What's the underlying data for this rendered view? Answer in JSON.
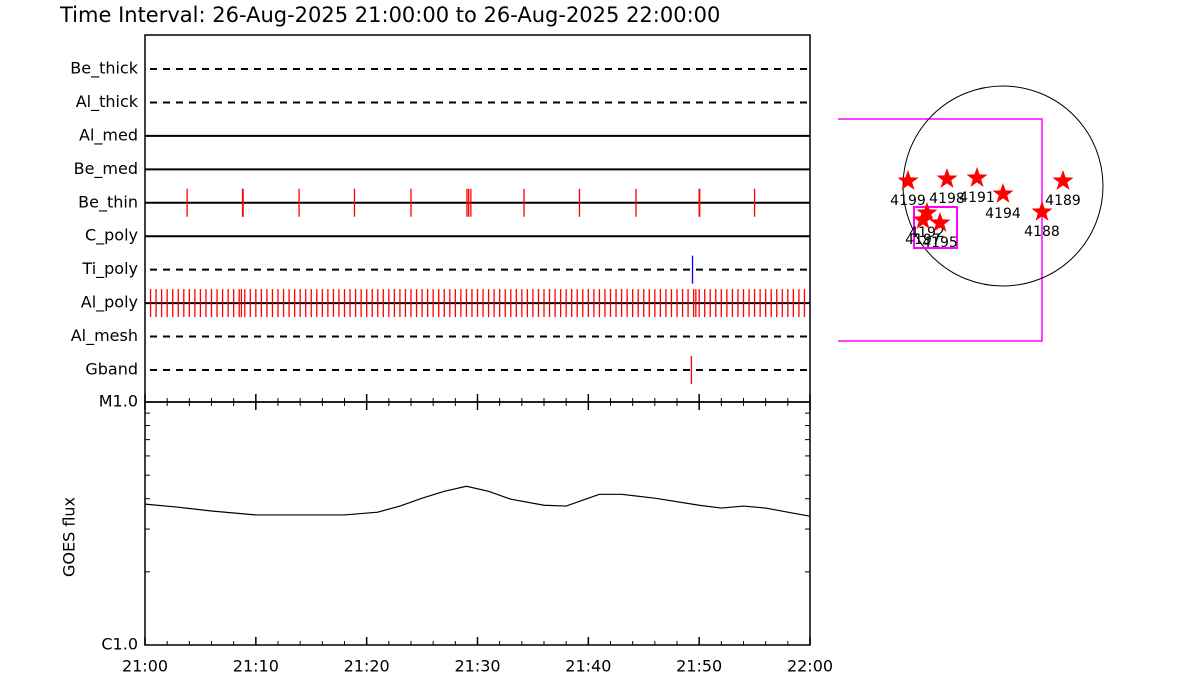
{
  "chart_data": [
    {
      "type": "events",
      "title": "Time Interval: 26-Aug-2025 21:00:00 to 26-Aug-2025 22:00:00",
      "xlim": [
        0,
        60
      ],
      "rows": [
        {
          "name": "Be_thick",
          "line": "dashed",
          "color": "#ff0000",
          "events": []
        },
        {
          "name": "Al_thick",
          "line": "dashed",
          "color": "#ff0000",
          "events": []
        },
        {
          "name": "Al_med",
          "line": "solid",
          "color": "#ff0000",
          "events": []
        },
        {
          "name": "Be_med",
          "line": "solid",
          "color": "#ff0000",
          "events": []
        },
        {
          "name": "Be_thin",
          "line": "solid",
          "color": "#ff0000",
          "events": [
            3.8,
            8.8,
            8.85,
            13.9,
            18.9,
            24.0,
            29.05,
            29.2,
            29.4,
            34.2,
            39.2,
            44.3,
            50.0,
            50.05,
            55.0
          ]
        },
        {
          "name": "C_poly",
          "line": "solid",
          "color": "#ff0000",
          "events": []
        },
        {
          "name": "Ti_poly",
          "line": "dashed",
          "color": "#0000ff",
          "events": [
            49.4
          ]
        },
        {
          "name": "Al_poly",
          "line": "solid",
          "color": "#ff0000",
          "events": [
            0.5,
            1,
            1.5,
            2,
            2.5,
            3,
            3.5,
            4,
            4.5,
            5,
            5.5,
            6,
            6.5,
            7,
            7.5,
            8,
            8.5,
            8.7,
            9,
            9.5,
            10,
            10.5,
            11,
            11.5,
            12,
            12.5,
            13,
            13.5,
            14,
            14.5,
            15,
            15.5,
            16,
            16.5,
            17,
            17.5,
            18,
            18.5,
            19,
            19.5,
            20,
            20.5,
            21,
            21.5,
            22,
            22.5,
            23,
            23.5,
            24,
            24.5,
            25,
            25.5,
            26,
            26.5,
            27,
            27.5,
            28,
            28.5,
            29,
            29.5,
            30,
            30.5,
            31,
            31.5,
            32,
            32.5,
            33,
            33.5,
            34,
            34.5,
            35,
            35.5,
            36,
            36.5,
            37,
            37.5,
            38,
            38.5,
            39,
            39.5,
            40,
            40.5,
            41,
            41.5,
            42,
            42.5,
            43,
            43.5,
            44,
            44.5,
            45,
            45.5,
            46,
            46.5,
            47,
            47.5,
            48,
            48.5,
            49,
            49.5,
            49.7,
            50,
            50.5,
            51,
            51.5,
            52,
            52.5,
            53,
            53.5,
            54,
            54.5,
            55,
            55.5,
            56,
            56.5,
            57,
            57.5,
            58,
            58.5,
            59,
            59.5
          ]
        },
        {
          "name": "Al_mesh",
          "line": "dashed",
          "color": "#ff0000",
          "events": []
        },
        {
          "name": "Gband",
          "line": "dashed",
          "color": "#ff0000",
          "events": [
            49.3
          ]
        }
      ]
    },
    {
      "type": "line",
      "ylabel": "GOES flux",
      "color": "#000000",
      "x": [
        0,
        3,
        6,
        10,
        14,
        18,
        21,
        23,
        25,
        27,
        29,
        31,
        33,
        36,
        38,
        40,
        41,
        43,
        46,
        50,
        52,
        54,
        56,
        58,
        60
      ],
      "values": [
        3.8e-06,
        3.69e-06,
        3.56e-06,
        3.43e-06,
        3.43e-06,
        3.43e-06,
        3.52e-06,
        3.73e-06,
        4.02e-06,
        4.29e-06,
        4.5e-06,
        4.29e-06,
        3.98e-06,
        3.76e-06,
        3.73e-06,
        4.02e-06,
        4.17e-06,
        4.17e-06,
        4.02e-06,
        3.76e-06,
        3.66e-06,
        3.73e-06,
        3.66e-06,
        3.52e-06,
        3.39e-06
      ],
      "xlim": [
        0,
        60
      ],
      "xticks": [
        {
          "value": 0,
          "label": "21:00"
        },
        {
          "value": 10,
          "label": "21:10"
        },
        {
          "value": 20,
          "label": "21:20"
        },
        {
          "value": 30,
          "label": "21:30"
        },
        {
          "value": 40,
          "label": "21:40"
        },
        {
          "value": 50,
          "label": "21:50"
        },
        {
          "value": 60,
          "label": "22:00"
        }
      ],
      "xminor": [
        2,
        4,
        6,
        8,
        12,
        14,
        16,
        18,
        22,
        24,
        26,
        28,
        32,
        34,
        36,
        38,
        42,
        44,
        46,
        48,
        52,
        54,
        56,
        58
      ],
      "log_y": true,
      "ylim": [
        1e-06,
        1e-05
      ],
      "yticks": [
        {
          "value": 1e-06,
          "label": "C1.0"
        },
        {
          "value": 1e-05,
          "label": "M1.0"
        }
      ],
      "yminor": [
        2e-06,
        3e-06,
        4e-06,
        5e-06,
        6e-06,
        7e-06,
        8e-06,
        9e-06
      ]
    },
    {
      "type": "disk",
      "color": "#ff0000",
      "regions": [
        {
          "label": "4199",
          "x": -0.95,
          "y": 0.05
        },
        {
          "label": "4198",
          "x": -0.56,
          "y": 0.07
        },
        {
          "label": "4191",
          "x": -0.26,
          "y": 0.08
        },
        {
          "label": "4194",
          "x": 0.0,
          "y": -0.08
        },
        {
          "label": "4189",
          "x": 0.6,
          "y": 0.05
        },
        {
          "label": "4188",
          "x": 0.39,
          "y": -0.26
        },
        {
          "label": "4192",
          "x": -0.76,
          "y": -0.27
        },
        {
          "label": "4197",
          "x": -0.8,
          "y": -0.34
        },
        {
          "label": "4195",
          "x": -0.63,
          "y": -0.37
        }
      ]
    }
  ]
}
